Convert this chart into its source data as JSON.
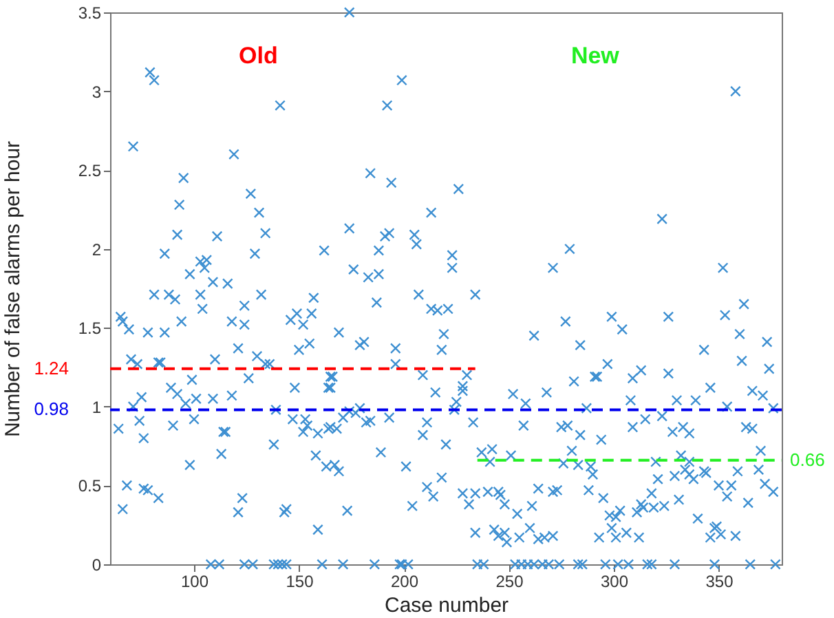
{
  "chart_data": {
    "type": "scatter",
    "xlabel": "Case number",
    "ylabel": "Number of false alarms per hour",
    "xlim": [
      60,
      380
    ],
    "ylim": [
      0,
      3.5
    ],
    "xticks": [
      100,
      150,
      200,
      250,
      300,
      350
    ],
    "yticks": [
      0,
      0.5,
      1,
      1.5,
      2,
      2.5,
      3,
      3.5
    ],
    "marker": "cross",
    "series": [
      {
        "color": "#3d8fd1",
        "x": [
          79,
          81,
          141,
          71,
          119,
          95,
          127,
          93,
          131,
          92,
          111,
          134,
          86,
          129,
          162,
          103,
          106,
          105,
          98,
          109,
          116,
          174,
          199,
          192,
          184,
          194,
          226,
          213,
          174,
          191,
          193,
          205,
          206,
          188,
          223,
          223,
          176,
          183,
          188,
          271,
          358,
          323,
          279,
          352,
          81,
          88,
          91,
          103,
          104,
          132,
          157,
          65,
          66,
          69,
          78,
          86,
          94,
          118,
          124,
          124,
          146,
          149,
          152,
          156,
          121,
          150,
          155,
          70,
          73,
          83,
          84,
          110,
          130,
          134,
          136,
          126,
          99,
          89,
          92,
          148,
          165,
          165,
          75,
          71,
          96,
          101,
          109,
          118,
          139,
          74,
          90,
          100,
          147,
          153,
          154,
          152,
          164,
          64,
          76,
          114,
          115,
          159,
          138,
          113,
          158,
          163,
          98,
          68,
          76,
          78,
          83,
          66,
          123,
          121,
          143,
          144,
          159,
          108,
          112,
          124,
          128,
          138,
          140,
          142,
          144,
          161,
          187,
          207,
          234,
          213,
          216,
          221,
          169,
          179,
          181,
          196,
          219,
          218,
          262,
          196,
          166,
          209,
          164,
          230,
          228,
          228,
          215,
          225,
          224,
          252,
          258,
          268,
          165,
          168,
          171,
          174,
          177,
          179,
          182,
          184,
          193,
          209,
          211,
          220,
          233,
          257,
          237,
          242,
          241,
          251,
          189,
          201,
          218,
          167,
          169,
          211,
          214,
          204,
          173,
          228,
          231,
          234,
          240,
          245,
          246,
          248,
          264,
          261,
          254,
          271,
          234,
          243,
          245,
          248,
          249,
          255,
          260,
          264,
          267,
          171,
          186,
          198,
          199,
          202,
          235,
          238,
          253,
          256,
          259,
          262,
          266,
          269,
          362,
          353,
          326,
          299,
          304,
          277,
          360,
          373,
          284,
          343,
          361,
          297,
          374,
          313,
          326,
          309,
          291,
          292,
          281,
          346,
          366,
          371,
          308,
          330,
          339,
          354,
          323,
          287,
          376,
          315,
          309,
          275,
          278,
          333,
          328,
          336,
          363,
          366,
          284,
          294,
          280,
          332,
          370,
          276,
          283,
          289,
          320,
          336,
          290,
          334,
          336,
          338,
          343,
          344,
          329,
          321,
          359,
          369,
          350,
          356,
          372,
          376,
          273,
          288,
          354,
          364,
          331,
          318,
          295,
          324,
          319,
          313,
          314,
          311,
          303,
          298,
          301,
          299,
          306,
          293,
          301,
          312,
          340,
          348,
          349,
          346,
          351,
          358,
          271,
          274,
          283,
          285,
          296,
          302,
          307,
          316,
          318,
          329,
          348,
          365,
          377
        ],
        "values": [
          3.12,
          3.07,
          2.91,
          2.65,
          2.6,
          2.45,
          2.35,
          2.28,
          2.23,
          2.09,
          2.08,
          2.1,
          1.97,
          1.97,
          1.99,
          1.92,
          1.93,
          1.88,
          1.84,
          1.79,
          1.78,
          3.5,
          3.07,
          2.91,
          2.48,
          2.42,
          2.38,
          2.23,
          2.13,
          2.08,
          2.1,
          2.09,
          2.03,
          1.99,
          1.96,
          1.88,
          1.87,
          1.82,
          1.84,
          1.88,
          3.0,
          2.19,
          2.0,
          1.88,
          1.71,
          1.71,
          1.68,
          1.71,
          1.62,
          1.71,
          1.69,
          1.57,
          1.54,
          1.49,
          1.47,
          1.47,
          1.54,
          1.54,
          1.52,
          1.64,
          1.55,
          1.59,
          1.52,
          1.59,
          1.37,
          1.36,
          1.4,
          1.3,
          1.27,
          1.28,
          1.28,
          1.3,
          1.32,
          1.27,
          1.27,
          1.18,
          1.17,
          1.12,
          1.08,
          1.12,
          1.19,
          1.12,
          1.06,
          1.0,
          1.02,
          1.05,
          1.05,
          1.07,
          0.98,
          0.91,
          0.88,
          0.92,
          0.92,
          0.92,
          0.88,
          0.84,
          0.86,
          0.86,
          0.8,
          0.84,
          0.84,
          0.83,
          0.76,
          0.7,
          0.69,
          0.62,
          0.63,
          0.5,
          0.48,
          0.47,
          0.42,
          0.35,
          0.42,
          0.33,
          0.33,
          0.35,
          0.22,
          0,
          0,
          0,
          0,
          0,
          0,
          0,
          0,
          0,
          1.66,
          1.71,
          1.71,
          1.62,
          1.61,
          1.62,
          1.47,
          1.39,
          1.41,
          1.37,
          1.46,
          1.36,
          1.45,
          1.27,
          1.19,
          1.2,
          1.12,
          1.2,
          1.13,
          1.1,
          1.09,
          1.03,
          0.98,
          1.08,
          1.02,
          1.09,
          0.87,
          0.86,
          0.93,
          0.97,
          0.96,
          0.99,
          0.9,
          0.91,
          0.93,
          0.82,
          0.9,
          0.76,
          0.9,
          0.88,
          0.71,
          0.73,
          0.65,
          0.69,
          0.71,
          0.62,
          0.55,
          0.63,
          0.59,
          0.49,
          0.43,
          0.37,
          0.34,
          0.45,
          0.38,
          0.45,
          0.46,
          0.46,
          0.44,
          0.38,
          0.48,
          0.37,
          0.32,
          0.46,
          0.2,
          0.22,
          0.18,
          0.2,
          0.14,
          0.17,
          0.23,
          0.16,
          0.17,
          0,
          0,
          0,
          0,
          0,
          0,
          0,
          0,
          0,
          0,
          0,
          0,
          0,
          1.65,
          1.58,
          1.57,
          1.57,
          1.49,
          1.54,
          1.46,
          1.41,
          1.39,
          1.36,
          1.29,
          1.27,
          1.24,
          1.23,
          1.21,
          1.18,
          1.19,
          1.19,
          1.16,
          1.12,
          1.1,
          1.07,
          1.04,
          1.04,
          1.04,
          1.0,
          0.94,
          0.99,
          0.99,
          0.92,
          0.87,
          0.87,
          0.88,
          0.87,
          0.84,
          0.83,
          0.87,
          0.86,
          0.82,
          0.79,
          0.72,
          0.69,
          0.72,
          0.64,
          0.63,
          0.62,
          0.65,
          0.65,
          0.57,
          0.6,
          0.57,
          0.54,
          0.59,
          0.58,
          0.56,
          0.54,
          0.59,
          0.6,
          0.5,
          0.5,
          0.51,
          0.46,
          0.47,
          0.47,
          0.43,
          0.39,
          0.41,
          0.45,
          0.42,
          0.37,
          0.36,
          0.38,
          0.36,
          0.33,
          0.34,
          0.31,
          0.3,
          0.23,
          0.2,
          0.17,
          0.17,
          0.17,
          0.29,
          0.23,
          0.24,
          0.17,
          0.19,
          0.18,
          0.18,
          0,
          0,
          0,
          0,
          0,
          0,
          0,
          0,
          0,
          0,
          0,
          0
        ]
      },
      {
        "type": "line",
        "color": "#ff0000",
        "line_style": "dashed",
        "marker": "none",
        "x": [
          60,
          234
        ],
        "values": [
          1.24,
          1.24
        ]
      },
      {
        "type": "line",
        "color": "#22ee22",
        "line_style": "dashed",
        "marker": "none",
        "x": [
          235,
          380
        ],
        "values": [
          0.66,
          0.66
        ]
      }
    ],
    "ref_lines": [
      {
        "axis": "y",
        "value": 0.98,
        "label": "0.98",
        "color": "#0000ee",
        "line_style": "dashed"
      }
    ],
    "annotations": [
      "Old",
      "New",
      {
        "text": "1.24",
        "x": 60,
        "y": 1.24
      },
      {
        "text": "0.66",
        "x": 380,
        "y": 0.66
      }
    ]
  }
}
